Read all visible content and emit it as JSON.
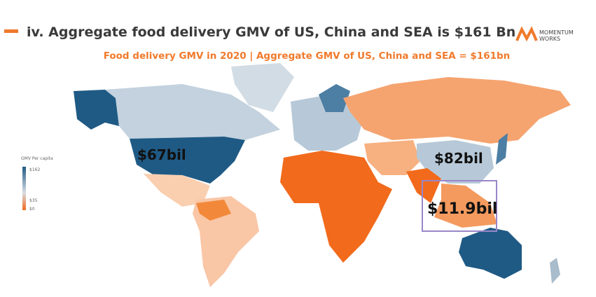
{
  "header": {
    "title": "iv. Aggregate food delivery GMV of US, China and SEA is $161 Bn",
    "logo": [
      "MOMENTUM",
      "WORKS"
    ]
  },
  "subtitle": "Food delivery GMV in 2020 | Aggregate GMV of US, China and SEA = $161bn",
  "legend": {
    "title": "GMV Per capita",
    "ticks": [
      "$162",
      "$35",
      "$0"
    ]
  },
  "labels": {
    "us": "$67bil",
    "china": "$82bil",
    "sea": "$11.9bil"
  }
}
